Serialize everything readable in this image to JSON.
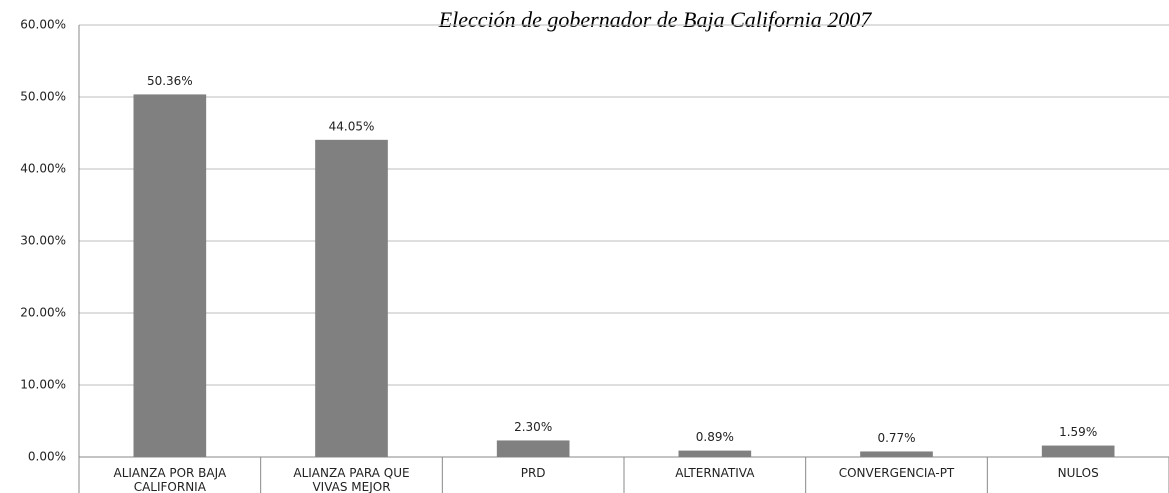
{
  "chart_data": {
    "type": "bar",
    "title": "Elección de gobernador de Baja California 2007",
    "categories": [
      "ALIANZA POR BAJA CALIFORNIA",
      "ALIANZA PARA QUE VIVAS MEJOR",
      "PRD",
      "ALTERNATIVA",
      "CONVERGENCIA-PT",
      "NULOS"
    ],
    "values": [
      50.36,
      44.05,
      2.3,
      0.89,
      0.77,
      1.59
    ],
    "value_labels": [
      "50.36%",
      "44.05%",
      "2.30%",
      "0.89%",
      "0.77%",
      "1.59%"
    ],
    "color": "#808080",
    "ylim": [
      0,
      60
    ],
    "yticks": [
      {
        "value": 0,
        "label": "0.00%"
      },
      {
        "value": 10,
        "label": "10.00%"
      },
      {
        "value": 20,
        "label": "20.00%"
      },
      {
        "value": 30,
        "label": "30.00%"
      },
      {
        "value": 40,
        "label": "40.00%"
      },
      {
        "value": 50,
        "label": "50.00%"
      },
      {
        "value": 60,
        "label": "60.00%"
      }
    ],
    "grid": true
  }
}
